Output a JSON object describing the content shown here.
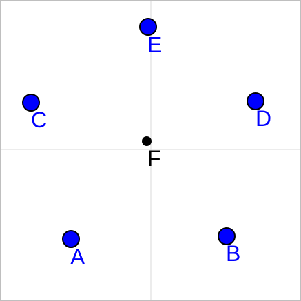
{
  "colors": {
    "background": "#ffffff",
    "grid": "#d9d9d9",
    "frame": "#bfbfbf",
    "point_fill": "#0000ff",
    "point_stroke": "#000000",
    "point_label": "#0000ff",
    "center_point": "#000000",
    "center_label": "#000000"
  },
  "points": [
    {
      "label": "A",
      "kind": "free",
      "icon": "blue-circle-point"
    },
    {
      "label": "B",
      "kind": "free",
      "icon": "blue-circle-point"
    },
    {
      "label": "C",
      "kind": "free",
      "icon": "blue-circle-point"
    },
    {
      "label": "D",
      "kind": "free",
      "icon": "blue-circle-point"
    },
    {
      "label": "E",
      "kind": "free",
      "icon": "blue-circle-point"
    },
    {
      "label": "F",
      "kind": "dependent",
      "icon": "black-dot-point"
    }
  ]
}
